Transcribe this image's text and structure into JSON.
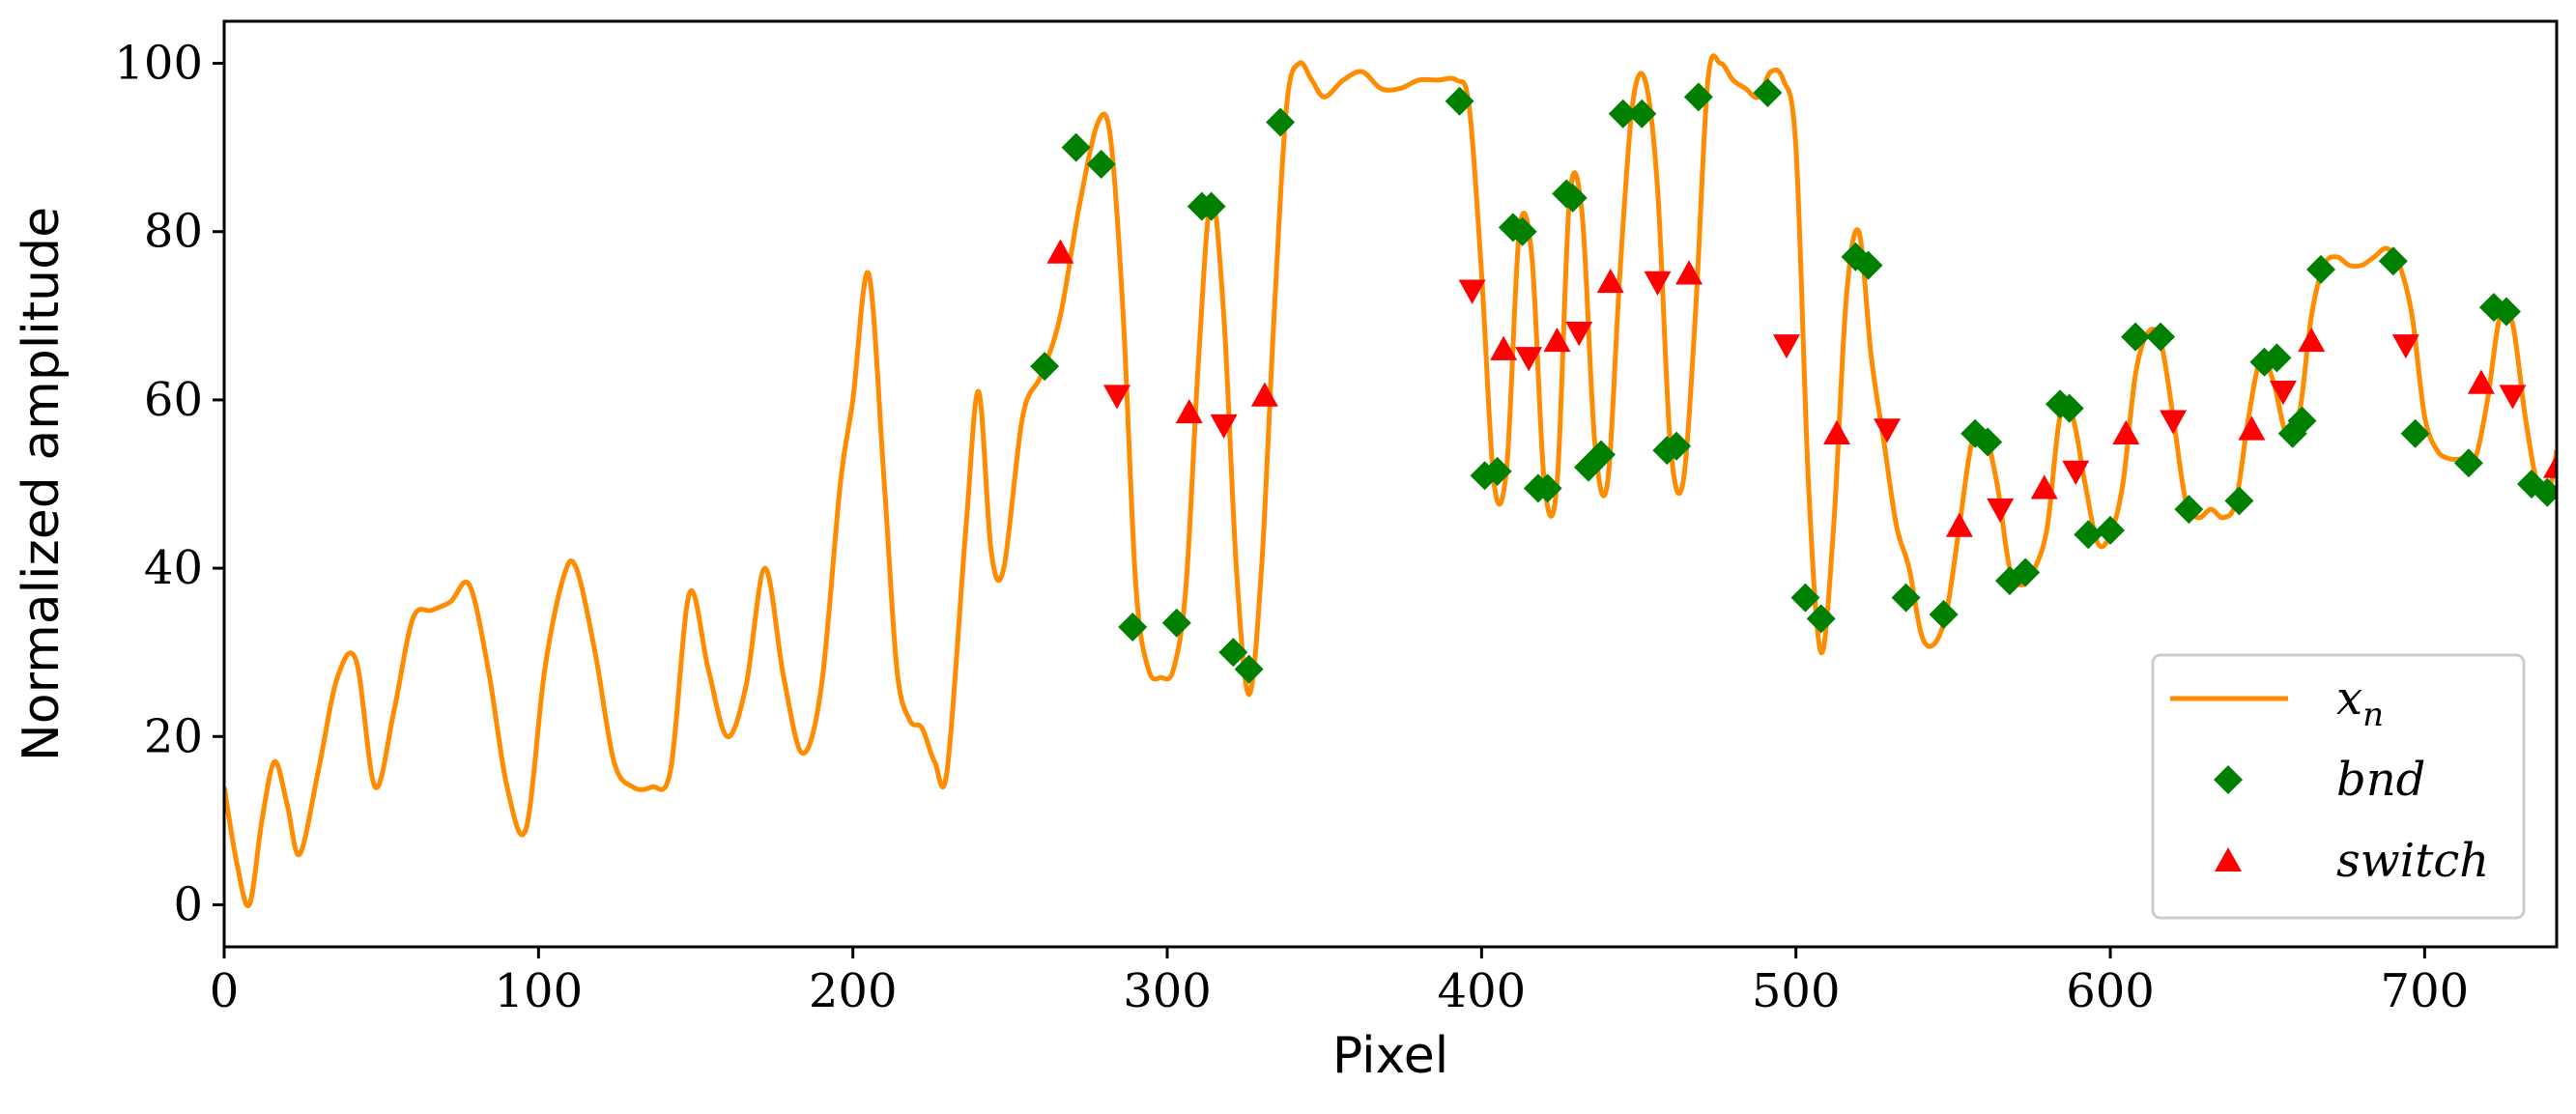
{
  "chart_data": {
    "type": "line",
    "title": "",
    "xlabel": "Pixel",
    "ylabel": "Normalized amplitude",
    "xlim": [
      0,
      742
    ],
    "ylim": [
      -5,
      105
    ],
    "xticks": [
      0,
      100,
      200,
      300,
      400,
      500,
      600,
      700
    ],
    "yticks": [
      0,
      20,
      40,
      60,
      80,
      100
    ],
    "grid": false,
    "legend_position": "bottom-right",
    "colors": {
      "line": "#ff8c00",
      "bnd": "#008000",
      "switch": "#ff0000"
    },
    "series": [
      {
        "name": "x_n",
        "legend_label": "x",
        "legend_sub": "n",
        "kind": "line",
        "x": [
          0,
          4,
          8,
          12,
          16,
          20,
          24,
          30,
          36,
          42,
          48,
          54,
          60,
          66,
          72,
          78,
          84,
          90,
          96,
          102,
          108,
          112,
          118,
          124,
          130,
          136,
          142,
          148,
          154,
          160,
          166,
          172,
          178,
          184,
          190,
          196,
          200,
          205,
          210,
          214,
          218,
          222,
          226,
          230,
          236,
          240,
          244,
          248,
          254,
          260,
          266,
          272,
          278,
          282,
          286,
          290,
          294,
          298,
          302,
          306,
          310,
          314,
          318,
          322,
          326,
          330,
          334,
          338,
          342,
          346,
          350,
          356,
          362,
          368,
          374,
          380,
          386,
          392,
          396,
          400,
          404,
          408,
          412,
          416,
          420,
          424,
          428,
          432,
          436,
          440,
          444,
          448,
          452,
          456,
          460,
          464,
          468,
          472,
          476,
          480,
          484,
          488,
          492,
          496,
          500,
          504,
          508,
          512,
          516,
          520,
          524,
          528,
          532,
          536,
          540,
          544,
          548,
          552,
          556,
          560,
          564,
          568,
          572,
          576,
          580,
          584,
          588,
          592,
          596,
          600,
          604,
          608,
          612,
          616,
          620,
          624,
          628,
          632,
          636,
          640,
          644,
          648,
          652,
          656,
          660,
          664,
          668,
          672,
          676,
          680,
          684,
          688,
          692,
          696,
          700,
          704,
          708,
          712,
          716,
          720,
          724,
          728,
          732,
          736,
          740,
          742
        ],
        "y": [
          14,
          5,
          0,
          10,
          17,
          12,
          6,
          16,
          27,
          29,
          14,
          23,
          34,
          35,
          36,
          38,
          28,
          14,
          9,
          28,
          39,
          40,
          30,
          17,
          14,
          14,
          16,
          37,
          28,
          20,
          26,
          40,
          27,
          18,
          26,
          50,
          60,
          75,
          50,
          28,
          22,
          21,
          17,
          16,
          45,
          61,
          42,
          40,
          58,
          63,
          70,
          83,
          93,
          91,
          70,
          38,
          28,
          27,
          28,
          38,
          65,
          84,
          70,
          40,
          25,
          40,
          70,
          95,
          100,
          98,
          96,
          98,
          99,
          97,
          97,
          98,
          98,
          98,
          95,
          75,
          50,
          52,
          80,
          77,
          50,
          50,
          84,
          82,
          55,
          50,
          75,
          95,
          98,
          85,
          55,
          50,
          70,
          98,
          100,
          98,
          97,
          96,
          99,
          98,
          90,
          50,
          30,
          45,
          72,
          80,
          65,
          55,
          45,
          40,
          32,
          31,
          35,
          45,
          55,
          56,
          50,
          40,
          38,
          40,
          45,
          58,
          58,
          50,
          43,
          44,
          50,
          63,
          68,
          67,
          58,
          48,
          46,
          47,
          46,
          48,
          58,
          65,
          62,
          56,
          58,
          70,
          76,
          77,
          76,
          76,
          77,
          78,
          76,
          70,
          58,
          54,
          53,
          53,
          53,
          60,
          70,
          69,
          58,
          50,
          50,
          54
        ],
        "smooth": true
      },
      {
        "name": "bnd",
        "kind": "marker",
        "marker": "diamond",
        "points": [
          [
            261,
            64
          ],
          [
            271,
            90
          ],
          [
            279,
            88
          ],
          [
            289,
            33
          ],
          [
            303,
            33.5
          ],
          [
            311,
            83
          ],
          [
            314,
            83
          ],
          [
            321,
            30
          ],
          [
            326,
            28
          ],
          [
            336,
            93
          ],
          [
            393,
            95.5
          ],
          [
            401,
            51
          ],
          [
            405,
            51.5
          ],
          [
            410,
            80.5
          ],
          [
            413,
            80
          ],
          [
            418,
            49.5
          ],
          [
            421,
            49.5
          ],
          [
            427,
            84.5
          ],
          [
            429,
            84
          ],
          [
            434,
            52
          ],
          [
            438,
            53.5
          ],
          [
            445,
            94
          ],
          [
            451,
            94
          ],
          [
            459,
            54
          ],
          [
            462,
            54.5
          ],
          [
            469,
            96
          ],
          [
            491,
            96.5
          ],
          [
            503,
            36.5
          ],
          [
            508,
            34
          ],
          [
            519,
            77
          ],
          [
            523,
            76
          ],
          [
            535,
            36.5
          ],
          [
            547,
            34.5
          ],
          [
            557,
            56
          ],
          [
            561,
            55
          ],
          [
            568,
            38.5
          ],
          [
            573,
            39.5
          ],
          [
            584,
            59.5
          ],
          [
            587,
            59
          ],
          [
            593,
            44
          ],
          [
            600,
            44.5
          ],
          [
            608,
            67.5
          ],
          [
            616,
            67.5
          ],
          [
            625,
            47
          ],
          [
            641,
            48
          ],
          [
            649,
            64.5
          ],
          [
            653,
            65
          ],
          [
            658,
            56
          ],
          [
            661,
            57.5
          ],
          [
            667,
            75.5
          ],
          [
            690,
            76.5
          ],
          [
            697,
            56
          ],
          [
            714,
            52.5
          ],
          [
            722,
            71
          ],
          [
            726,
            70.5
          ],
          [
            734,
            50
          ],
          [
            739,
            49
          ]
        ]
      },
      {
        "name": "switch",
        "kind": "marker",
        "marker": "triangle",
        "points": [
          [
            266,
            77.5,
            "up"
          ],
          [
            284,
            60.5,
            "down"
          ],
          [
            307,
            58.5,
            "up"
          ],
          [
            318,
            57,
            "down"
          ],
          [
            331,
            60.5,
            "up"
          ],
          [
            397,
            73,
            "down"
          ],
          [
            407,
            66,
            "up"
          ],
          [
            415,
            65,
            "down"
          ],
          [
            424,
            67,
            "up"
          ],
          [
            431,
            68,
            "down"
          ],
          [
            441,
            74,
            "up"
          ],
          [
            456,
            74,
            "down"
          ],
          [
            466,
            75,
            "up"
          ],
          [
            497,
            66.5,
            "down"
          ],
          [
            513,
            56,
            "up"
          ],
          [
            529,
            56.5,
            "down"
          ],
          [
            552,
            45,
            "up"
          ],
          [
            565,
            47,
            "down"
          ],
          [
            579,
            49.5,
            "up"
          ],
          [
            589,
            51.5,
            "down"
          ],
          [
            605,
            56,
            "up"
          ],
          [
            620,
            57.5,
            "down"
          ],
          [
            645,
            56.5,
            "up"
          ],
          [
            655,
            61,
            "down"
          ],
          [
            664,
            67,
            "up"
          ],
          [
            694,
            66.5,
            "down"
          ],
          [
            718,
            62,
            "up"
          ],
          [
            728,
            60.5,
            "down"
          ],
          [
            742,
            52,
            "up"
          ]
        ]
      }
    ]
  }
}
